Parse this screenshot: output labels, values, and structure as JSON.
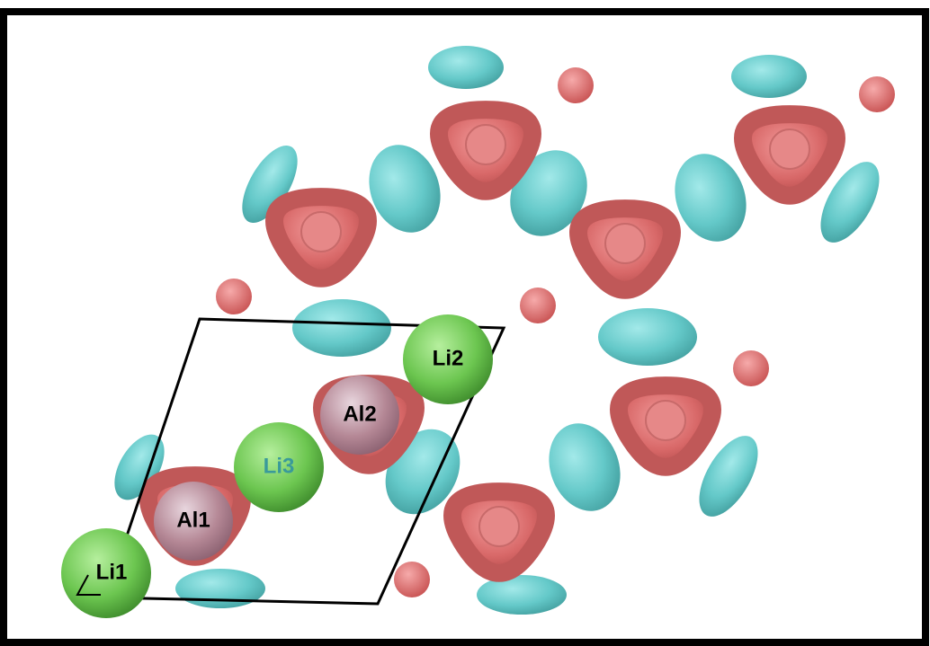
{
  "atoms": [
    {
      "label": "Li2"
    },
    {
      "label": "Al2"
    },
    {
      "label": "Li3"
    },
    {
      "label": "Al1"
    },
    {
      "label": "Li1"
    }
  ]
}
